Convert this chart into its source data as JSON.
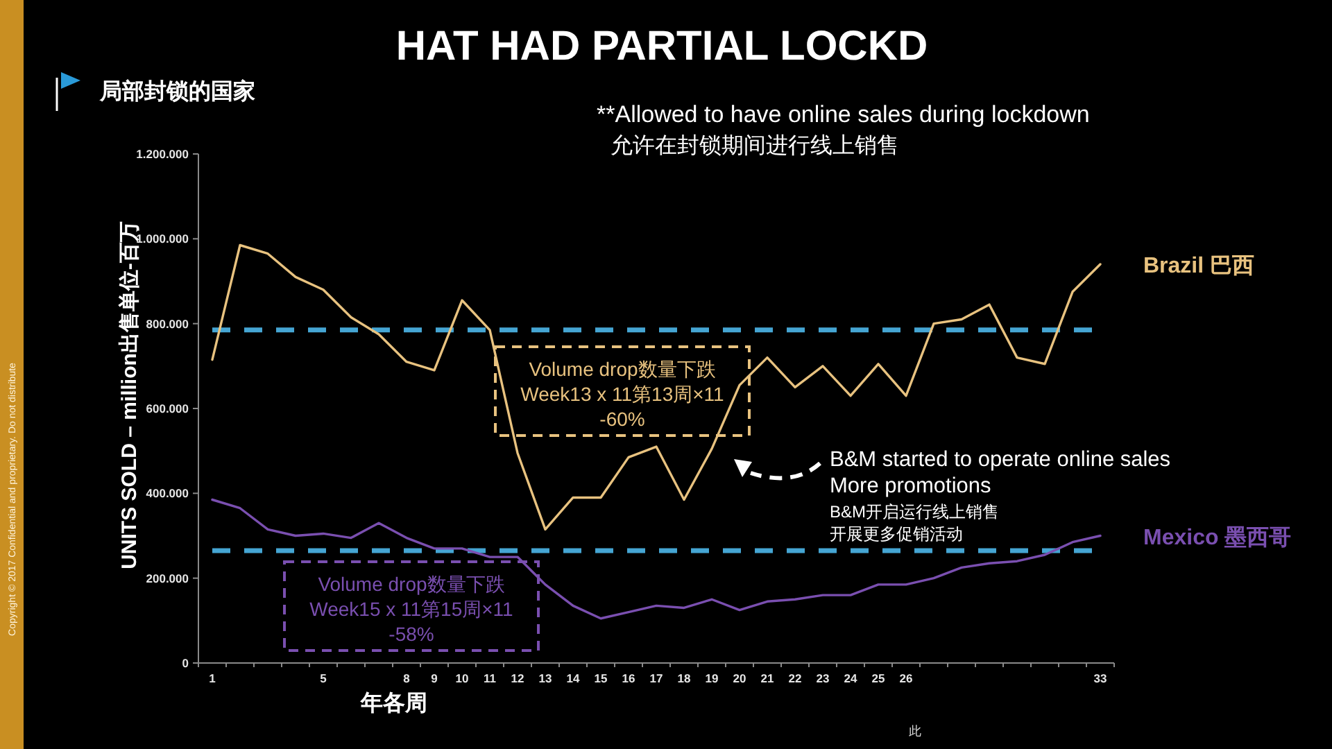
{
  "chart_data": {
    "type": "line",
    "title": "HAT HAD PARTIAL LOCKD",
    "subtitle": "局部封锁的国家",
    "xlabel": "年各周",
    "ylabel": "UNITS SOLD – million出售单位-百万",
    "categories": [
      "1",
      null,
      null,
      null,
      "5",
      null,
      null,
      "8",
      "9",
      "10",
      "11",
      "12",
      "13",
      "14",
      "15",
      "16",
      "17",
      "18",
      "19",
      "20",
      "21",
      "22",
      "23",
      "24",
      "25",
      "26",
      null,
      null,
      null,
      null,
      null,
      null,
      "33"
    ],
    "series": [
      {
        "name": "Brazil 巴西",
        "color": "#e8c27f",
        "values": [
          715000,
          985000,
          965000,
          910000,
          880000,
          815000,
          775000,
          710000,
          690000,
          855000,
          785000,
          495000,
          315000,
          390000,
          390000,
          485000,
          510000,
          385000,
          505000,
          655000,
          720000,
          650000,
          700000,
          630000,
          705000,
          630000,
          800000,
          810000,
          845000,
          720000,
          705000,
          875000,
          940000
        ]
      },
      {
        "name": "Mexico 墨西哥",
        "color": "#7a4fb0",
        "values": [
          385000,
          365000,
          315000,
          300000,
          305000,
          295000,
          330000,
          295000,
          270000,
          270000,
          250000,
          250000,
          185000,
          135000,
          105000,
          120000,
          135000,
          130000,
          150000,
          125000,
          145000,
          150000,
          160000,
          160000,
          185000,
          185000,
          200000,
          225000,
          235000,
          240000,
          255000,
          285000,
          300000
        ]
      }
    ],
    "ylim": [
      0,
      1200000
    ],
    "yticks": [
      0,
      {
        "value": 200000,
        "label": "200.000"
      },
      {
        "value": 400000,
        "label": "400.000"
      },
      {
        "value": 600000,
        "label": "600.000"
      },
      {
        "value": 800000,
        "label": "800.000"
      },
      {
        "value": 1000000,
        "label": "1.000.000"
      },
      {
        "value": 1200000,
        "label": "1.200.000"
      }
    ],
    "ref_lines": [
      {
        "axis": "y",
        "value": 785000,
        "color": "#45a5d3",
        "line_style": "dashed"
      },
      {
        "axis": "y",
        "value": 265000,
        "color": "#45a5d3",
        "line_style": "dashed"
      }
    ],
    "annotations": [
      "**Allowed to have online sales during lockdown\n允许在封锁期间进行线上销售",
      "Volume drop数量下跌\nWeek13 x 11第13周×11\n-60%",
      "Volume drop数量下跌\nWeek15 x 11第15周×11\n-58%",
      "B&M started to operate online sales\nMore promotions",
      "B&M开启运行线上销售",
      "开展更多促销活动",
      "Copyright © 2017 Confidential and proprietary. Do not distribute",
      "此"
    ]
  }
}
